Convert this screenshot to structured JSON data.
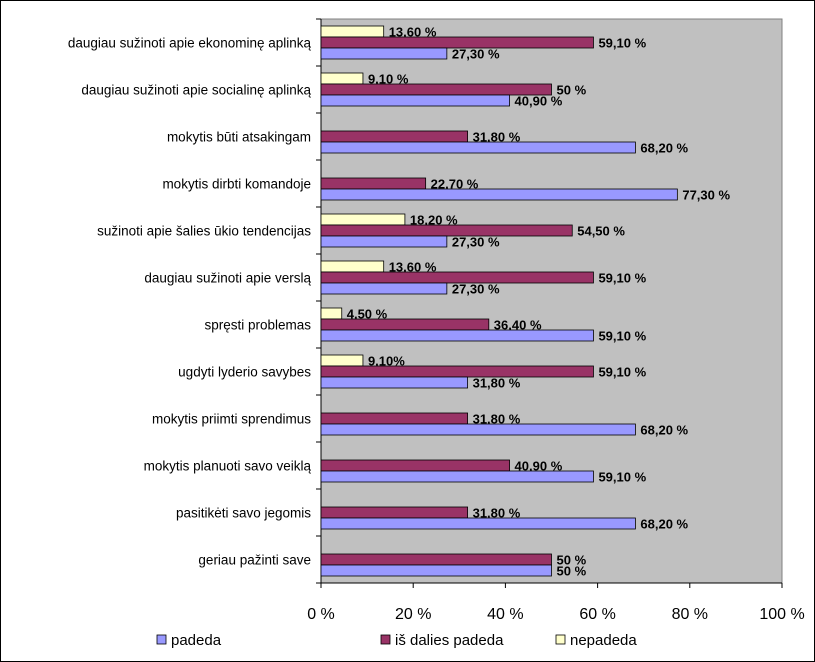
{
  "chart_data": {
    "type": "bar",
    "orientation": "horizontal",
    "categories": [
      "daugiau sužinoti apie ekonominę aplinką",
      "daugiau sužinoti apie socialinę aplinką",
      "mokytis būti atsakingam",
      "mokytis dirbti komandoje",
      "sužinoti apie šalies ūkio tendencijas",
      "daugiau sužinoti apie verslą",
      "spręsti problemas",
      "ugdyti lyderio savybes",
      "mokytis priimti sprendimus",
      "mokytis planuoti savo veiklą",
      "pasitikėti savo jegomis",
      "geriau pažinti save"
    ],
    "series": [
      {
        "name": "padeda",
        "color": "#9999ff",
        "values": [
          27.3,
          40.9,
          68.2,
          77.3,
          27.3,
          27.3,
          59.1,
          31.8,
          68.2,
          59.1,
          68.2,
          50
        ],
        "labels": [
          "27,30 %",
          "40,90 %",
          "68,20 %",
          "77,30 %",
          "27,30 %",
          "27,30 %",
          "59,10 %",
          "31,80 %",
          "68,20 %",
          "59,10 %",
          "68,20 %",
          "50 %"
        ]
      },
      {
        "name": "iš dalies padeda",
        "color": "#993366",
        "values": [
          59.1,
          50,
          31.8,
          22.7,
          54.5,
          59.1,
          36.4,
          59.1,
          31.8,
          40.9,
          31.8,
          50
        ],
        "labels": [
          "59,10 %",
          "50 %",
          "31,80 %",
          "22,70 %",
          "54,50 %",
          "59,10 %",
          "36,40 %",
          "59,10 %",
          "31,80 %",
          "40,90 %",
          "31,80 %",
          "50 %"
        ]
      },
      {
        "name": "nepadeda",
        "color": "#ffffcc",
        "values": [
          13.6,
          9.1,
          0,
          0,
          18.2,
          13.6,
          4.5,
          9.1,
          0,
          0,
          0,
          0
        ],
        "labels": [
          "13,60 %",
          "9,10 %",
          "",
          "",
          "18,20 %",
          "13,60 %",
          "4,50 %",
          "9,10%",
          "",
          "",
          "",
          ""
        ]
      }
    ],
    "x_ticks": [
      "0 %",
      "20 %",
      "40 %",
      "60 %",
      "80 %",
      "100 %"
    ],
    "xlim": [
      0,
      100
    ],
    "plot_background": "#c0c0c0",
    "grid": false,
    "legend_position": "bottom"
  }
}
